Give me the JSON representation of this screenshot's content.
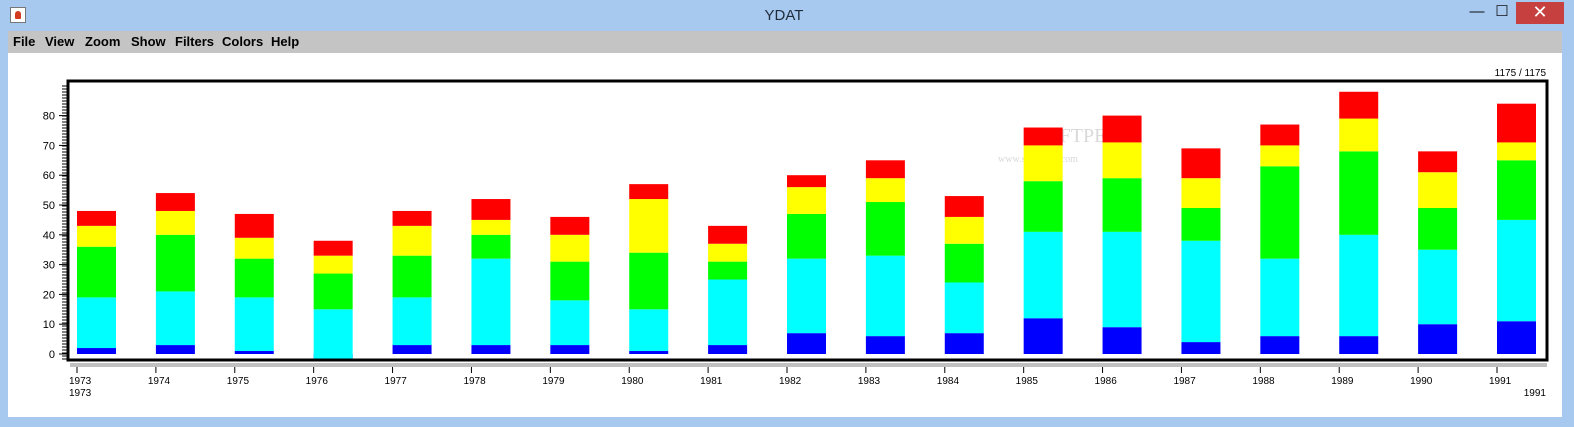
{
  "window": {
    "title": "YDAT",
    "app_icon": "java-cup-icon",
    "controls": [
      "minimize-icon",
      "maximize-icon",
      "close-icon"
    ]
  },
  "menu": [
    "File",
    "View",
    "Zoom",
    "Show",
    "Filters",
    "Colors",
    "Help"
  ],
  "counter": "1175 / 1175",
  "x_start_label": "1973",
  "x_end_label": "1991",
  "watermark": {
    "main": "SOFTPEDIA",
    "sub": "www.softpedia.com"
  },
  "chart_data": {
    "type": "bar",
    "stacked": true,
    "categories": [
      "1973",
      "1974",
      "1975",
      "1976",
      "1977",
      "1978",
      "1979",
      "1980",
      "1981",
      "1982",
      "1983",
      "1984",
      "1985",
      "1986",
      "1987",
      "1988",
      "1989",
      "1990",
      "1991"
    ],
    "y_ticks": [
      0,
      10,
      20,
      30,
      40,
      50,
      60,
      70,
      80
    ],
    "ylim": [
      -2,
      90
    ],
    "colors": [
      "#0000ff",
      "#00ffff",
      "#00ff00",
      "#ffff00",
      "#ff0000"
    ],
    "series": [
      {
        "values": [
          2,
          3,
          1,
          -2,
          3,
          3,
          3,
          1,
          3,
          7,
          6,
          7,
          12,
          9,
          4,
          6,
          6,
          10,
          11
        ]
      },
      {
        "values": [
          17,
          18,
          18,
          17,
          16,
          29,
          15,
          14,
          22,
          25,
          27,
          17,
          29,
          32,
          34,
          26,
          34,
          25,
          34
        ]
      },
      {
        "values": [
          17,
          19,
          13,
          12,
          14,
          8,
          13,
          19,
          6,
          15,
          18,
          13,
          17,
          18,
          11,
          31,
          28,
          14,
          20
        ]
      },
      {
        "values": [
          7,
          8,
          7,
          6,
          10,
          5,
          9,
          18,
          6,
          9,
          8,
          9,
          12,
          12,
          10,
          7,
          11,
          12,
          6
        ]
      },
      {
        "values": [
          5,
          6,
          8,
          5,
          5,
          7,
          6,
          5,
          6,
          4,
          6,
          7,
          6,
          9,
          10,
          7,
          9,
          7,
          13
        ]
      }
    ],
    "xlabel": "",
    "ylabel": "",
    "grid": false
  }
}
